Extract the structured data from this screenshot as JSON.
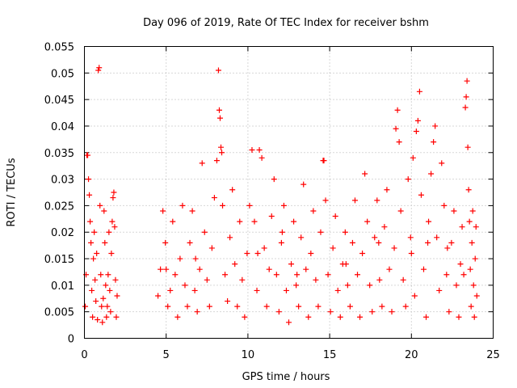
{
  "chart_data": {
    "type": "scatter",
    "title": "Day 096 of 2019, Rate Of TEC Index for receiver bshm",
    "xlabel": "GPS time / hours",
    "ylabel": "ROTI / TECUs",
    "xlim": [
      0,
      25
    ],
    "ylim": [
      0,
      0.055
    ],
    "x_ticks": [
      0,
      5,
      10,
      15,
      20,
      25
    ],
    "x_tick_labels": [
      "0",
      "5",
      "10",
      "15",
      "20",
      "25"
    ],
    "y_ticks": [
      0,
      0.005,
      0.01,
      0.015,
      0.02,
      0.025,
      0.03,
      0.035,
      0.04,
      0.045,
      0.05,
      0.055
    ],
    "y_tick_labels": [
      "0",
      "0.005",
      "0.01",
      "0.015",
      "0.02",
      "0.025",
      "0.03",
      "0.035",
      "0.04",
      "0.045",
      "0.05",
      "0.055"
    ],
    "grid": true,
    "marker": "+",
    "marker_color": "#ff0000",
    "series": [
      {
        "name": "ROTI",
        "points": [
          [
            0.05,
            0.006
          ],
          [
            0.1,
            0.012
          ],
          [
            0.15,
            0.0345
          ],
          [
            0.2,
            0.0345
          ],
          [
            0.25,
            0.03
          ],
          [
            0.3,
            0.027
          ],
          [
            0.35,
            0.022
          ],
          [
            0.4,
            0.018
          ],
          [
            0.45,
            0.009
          ],
          [
            0.5,
            0.004
          ],
          [
            0.55,
            0.015
          ],
          [
            0.6,
            0.02
          ],
          [
            0.65,
            0.011
          ],
          [
            0.7,
            0.007
          ],
          [
            0.75,
            0.016
          ],
          [
            0.8,
            0.0035
          ],
          [
            0.85,
            0.0505
          ],
          [
            0.9,
            0.051
          ],
          [
            0.95,
            0.025
          ],
          [
            1.0,
            0.012
          ],
          [
            1.05,
            0.006
          ],
          [
            1.1,
            0.003
          ],
          [
            1.15,
            0.0075
          ],
          [
            1.2,
            0.024
          ],
          [
            1.25,
            0.018
          ],
          [
            1.3,
            0.01
          ],
          [
            1.35,
            0.004
          ],
          [
            1.4,
            0.006
          ],
          [
            1.45,
            0.012
          ],
          [
            1.5,
            0.02
          ],
          [
            1.55,
            0.009
          ],
          [
            1.6,
            0.005
          ],
          [
            1.65,
            0.016
          ],
          [
            1.7,
            0.022
          ],
          [
            1.75,
            0.0265
          ],
          [
            1.8,
            0.0275
          ],
          [
            1.85,
            0.021
          ],
          [
            1.9,
            0.011
          ],
          [
            1.95,
            0.004
          ],
          [
            2.0,
            0.008
          ],
          [
            4.5,
            0.008
          ],
          [
            4.65,
            0.013
          ],
          [
            4.8,
            0.024
          ],
          [
            4.95,
            0.018
          ],
          [
            5.1,
            0.006
          ],
          [
            5.25,
            0.009
          ],
          [
            5.4,
            0.022
          ],
          [
            5.55,
            0.012
          ],
          [
            5.7,
            0.004
          ],
          [
            5.85,
            0.015
          ],
          [
            6.0,
            0.025
          ],
          [
            6.15,
            0.01
          ],
          [
            6.3,
            0.006
          ],
          [
            6.45,
            0.018
          ],
          [
            6.6,
            0.024
          ],
          [
            6.75,
            0.009
          ],
          [
            6.9,
            0.005
          ],
          [
            7.05,
            0.013
          ],
          [
            7.2,
            0.033
          ],
          [
            7.35,
            0.02
          ],
          [
            7.5,
            0.011
          ],
          [
            7.65,
            0.006
          ],
          [
            7.8,
            0.017
          ],
          [
            7.95,
            0.0265
          ],
          [
            8.1,
            0.0335
          ],
          [
            8.2,
            0.0505
          ],
          [
            8.25,
            0.043
          ],
          [
            8.3,
            0.0415
          ],
          [
            8.35,
            0.036
          ],
          [
            8.45,
            0.025
          ],
          [
            8.6,
            0.012
          ],
          [
            8.75,
            0.007
          ],
          [
            8.9,
            0.019
          ],
          [
            9.05,
            0.028
          ],
          [
            9.2,
            0.014
          ],
          [
            9.35,
            0.006
          ],
          [
            9.5,
            0.022
          ],
          [
            9.65,
            0.011
          ],
          [
            9.8,
            0.004
          ],
          [
            9.95,
            0.016
          ],
          [
            10.1,
            0.025
          ],
          [
            10.25,
            0.0355
          ],
          [
            10.4,
            0.022
          ],
          [
            10.55,
            0.009
          ],
          [
            10.7,
            0.0355
          ],
          [
            10.85,
            0.034
          ],
          [
            11.0,
            0.017
          ],
          [
            11.15,
            0.006
          ],
          [
            11.3,
            0.013
          ],
          [
            11.45,
            0.023
          ],
          [
            11.6,
            0.03
          ],
          [
            11.75,
            0.012
          ],
          [
            11.9,
            0.005
          ],
          [
            12.05,
            0.018
          ],
          [
            12.2,
            0.025
          ],
          [
            12.35,
            0.009
          ],
          [
            12.5,
            0.003
          ],
          [
            12.65,
            0.014
          ],
          [
            12.8,
            0.022
          ],
          [
            12.95,
            0.01
          ],
          [
            13.1,
            0.006
          ],
          [
            13.25,
            0.019
          ],
          [
            13.4,
            0.029
          ],
          [
            13.55,
            0.013
          ],
          [
            13.7,
            0.004
          ],
          [
            13.85,
            0.016
          ],
          [
            14.0,
            0.024
          ],
          [
            14.15,
            0.011
          ],
          [
            14.3,
            0.006
          ],
          [
            14.45,
            0.02
          ],
          [
            14.6,
            0.0335
          ],
          [
            14.75,
            0.026
          ],
          [
            14.9,
            0.012
          ],
          [
            15.05,
            0.005
          ],
          [
            15.2,
            0.017
          ],
          [
            15.35,
            0.023
          ],
          [
            15.5,
            0.009
          ],
          [
            15.65,
            0.004
          ],
          [
            15.8,
            0.014
          ],
          [
            15.95,
            0.02
          ],
          [
            16.1,
            0.01
          ],
          [
            16.25,
            0.006
          ],
          [
            16.4,
            0.018
          ],
          [
            16.55,
            0.026
          ],
          [
            16.7,
            0.012
          ],
          [
            16.85,
            0.004
          ],
          [
            17.0,
            0.016
          ],
          [
            17.15,
            0.031
          ],
          [
            17.3,
            0.022
          ],
          [
            17.45,
            0.01
          ],
          [
            17.6,
            0.005
          ],
          [
            17.75,
            0.019
          ],
          [
            17.9,
            0.026
          ],
          [
            18.05,
            0.011
          ],
          [
            18.2,
            0.006
          ],
          [
            18.35,
            0.021
          ],
          [
            18.5,
            0.028
          ],
          [
            18.65,
            0.013
          ],
          [
            18.8,
            0.005
          ],
          [
            18.95,
            0.017
          ],
          [
            19.05,
            0.0395
          ],
          [
            19.15,
            0.043
          ],
          [
            19.25,
            0.037
          ],
          [
            19.35,
            0.024
          ],
          [
            19.5,
            0.011
          ],
          [
            19.65,
            0.006
          ],
          [
            19.8,
            0.03
          ],
          [
            19.95,
            0.019
          ],
          [
            20.1,
            0.034
          ],
          [
            20.2,
            0.008
          ],
          [
            20.3,
            0.039
          ],
          [
            20.4,
            0.041
          ],
          [
            20.5,
            0.0465
          ],
          [
            20.6,
            0.027
          ],
          [
            20.75,
            0.013
          ],
          [
            20.9,
            0.004
          ],
          [
            21.05,
            0.022
          ],
          [
            21.2,
            0.031
          ],
          [
            21.35,
            0.037
          ],
          [
            21.45,
            0.04
          ],
          [
            21.55,
            0.019
          ],
          [
            21.7,
            0.009
          ],
          [
            21.85,
            0.033
          ],
          [
            22.0,
            0.025
          ],
          [
            22.15,
            0.012
          ],
          [
            22.3,
            0.005
          ],
          [
            22.45,
            0.018
          ],
          [
            22.6,
            0.024
          ],
          [
            22.75,
            0.01
          ],
          [
            22.9,
            0.004
          ],
          [
            23.0,
            0.014
          ],
          [
            23.1,
            0.021
          ],
          [
            23.2,
            0.012
          ],
          [
            23.3,
            0.0435
          ],
          [
            23.35,
            0.0455
          ],
          [
            23.4,
            0.0485
          ],
          [
            23.45,
            0.036
          ],
          [
            23.5,
            0.028
          ],
          [
            23.55,
            0.022
          ],
          [
            23.6,
            0.013
          ],
          [
            23.65,
            0.006
          ],
          [
            23.7,
            0.018
          ],
          [
            23.75,
            0.024
          ],
          [
            23.8,
            0.01
          ],
          [
            23.85,
            0.004
          ],
          [
            23.9,
            0.015
          ],
          [
            23.95,
            0.021
          ],
          [
            24.0,
            0.008
          ],
          [
            14.65,
            0.0335
          ],
          [
            8.4,
            0.035
          ],
          [
            10.6,
            0.016
          ],
          [
            12.1,
            0.02
          ],
          [
            13.0,
            0.012
          ],
          [
            16.0,
            0.014
          ],
          [
            18.0,
            0.018
          ],
          [
            20.0,
            0.016
          ],
          [
            21.0,
            0.018
          ],
          [
            22.2,
            0.017
          ],
          [
            6.8,
            0.015
          ],
          [
            5.0,
            0.013
          ]
        ]
      }
    ]
  }
}
